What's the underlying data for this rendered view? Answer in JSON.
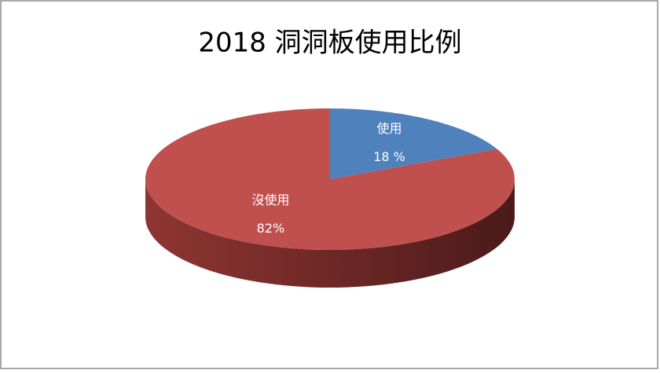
{
  "chart_data": {
    "type": "pie3d",
    "title": "2018 洞洞板使用比例",
    "categories": [
      "使用",
      "沒使用"
    ],
    "values": [
      18,
      82
    ],
    "value_labels": [
      "18 %",
      "82%"
    ],
    "colors": [
      "#4f81bd",
      "#c0504d"
    ]
  }
}
